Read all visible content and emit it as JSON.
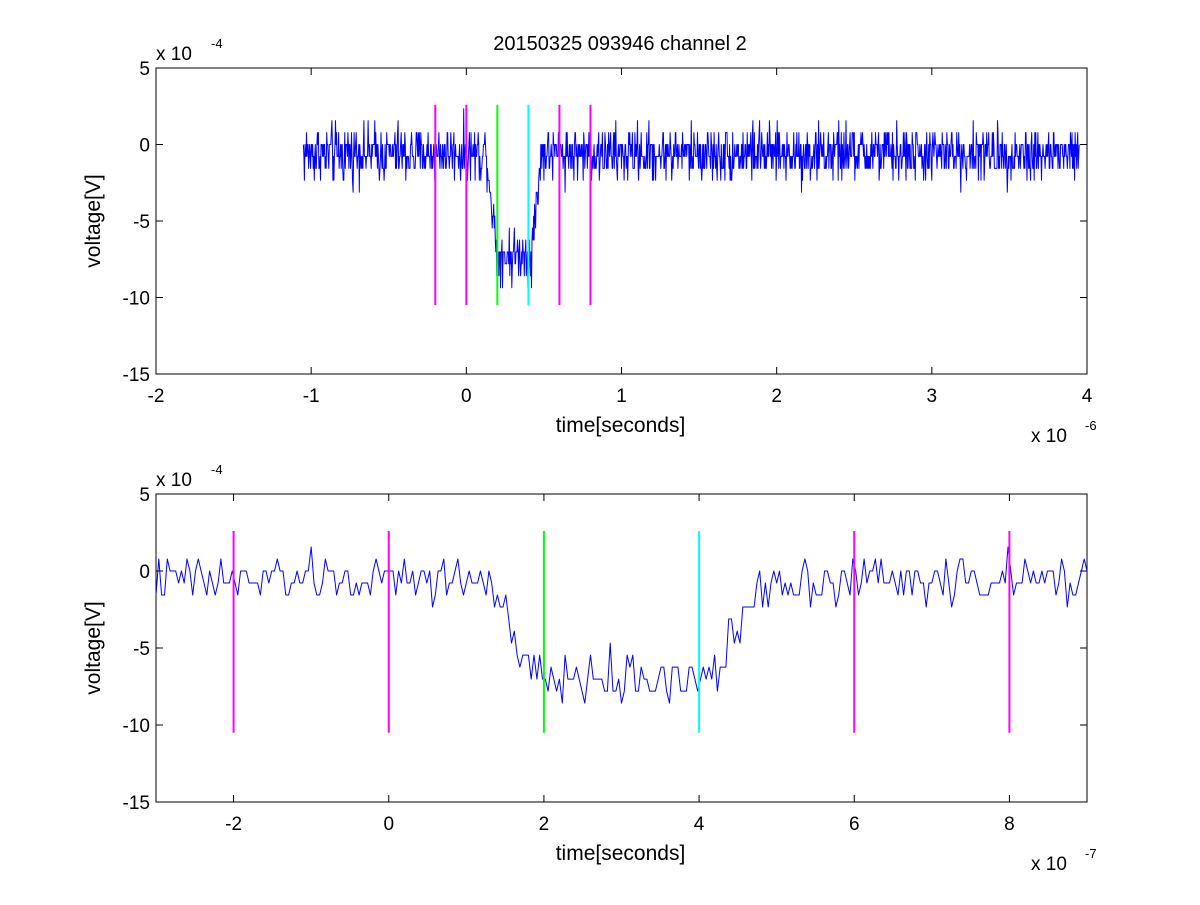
{
  "figure": {
    "title": "20150325 093946 channel 2"
  },
  "colors": {
    "signal": "#0000ff",
    "marker_magenta": "#ff00ff",
    "marker_green": "#00ff00",
    "marker_cyan": "#00ffff",
    "axes": "#000000"
  },
  "chart_data": [
    {
      "type": "line",
      "title": "20150325 093946 channel 2",
      "xlabel": "time[seconds]",
      "ylabel": "voltage[V]",
      "x_exponent_base": "x 10",
      "x_exponent_power": "-6",
      "y_exponent_base": "x 10",
      "y_exponent_power": "-4",
      "xlim": [
        -2,
        4
      ],
      "ylim": [
        -15,
        5
      ],
      "xticks": [
        -2,
        -1,
        0,
        1,
        2,
        3,
        4
      ],
      "xtick_labels": [
        "-2",
        "-1",
        "0",
        "1",
        "2",
        "3",
        "4"
      ],
      "yticks": [
        5,
        0,
        -5,
        -10,
        -15
      ],
      "ytick_labels": [
        "5",
        "0",
        "-5",
        "-10",
        "-15"
      ],
      "grid": false,
      "legend": "none",
      "series": [
        {
          "color": "#0000ff",
          "x_range": [
            -1.05,
            3.95
          ],
          "baseline": -0.6,
          "noise": 1.1,
          "dip": {
            "start": 0.13,
            "bottom_start": 0.2,
            "bottom_end": 0.42,
            "end": 0.48,
            "depth": -7.2
          }
        }
      ],
      "markers": [
        {
          "x": -0.2,
          "color": "#ff00ff",
          "y_range": [
            -10.5,
            2.6
          ]
        },
        {
          "x": 0.0,
          "color": "#ff00ff",
          "y_range": [
            -10.5,
            2.6
          ]
        },
        {
          "x": 0.2,
          "color": "#00ff00",
          "y_range": [
            -10.5,
            2.6
          ]
        },
        {
          "x": 0.4,
          "color": "#00ffff",
          "y_range": [
            -10.5,
            2.6
          ]
        },
        {
          "x": 0.6,
          "color": "#ff00ff",
          "y_range": [
            -10.5,
            2.6
          ]
        },
        {
          "x": 0.8,
          "color": "#ff00ff",
          "y_range": [
            -10.5,
            2.6
          ]
        }
      ]
    },
    {
      "type": "line",
      "xlabel": "time[seconds]",
      "ylabel": "voltage[V]",
      "x_exponent_base": "x 10",
      "x_exponent_power": "-7",
      "y_exponent_base": "x 10",
      "y_exponent_power": "-4",
      "xlim": [
        -3,
        9
      ],
      "ylim": [
        -15,
        5
      ],
      "xticks": [
        -2,
        0,
        2,
        4,
        6,
        8
      ],
      "xtick_labels": [
        "-2",
        "0",
        "2",
        "4",
        "6",
        "8"
      ],
      "yticks": [
        5,
        0,
        -5,
        -10,
        -15
      ],
      "ytick_labels": [
        "5",
        "0",
        "-5",
        "-10",
        "-15"
      ],
      "grid": false,
      "legend": "none",
      "series": [
        {
          "color": "#0000ff",
          "x_range": [
            -3,
            9
          ],
          "baseline": -0.6,
          "noise": 1.0,
          "dip": {
            "start": 1.3,
            "bottom_start": 1.8,
            "bottom_end": 4.2,
            "end": 4.8,
            "depth": -7.0
          }
        }
      ],
      "markers": [
        {
          "x": -2,
          "color": "#ff00ff",
          "y_range": [
            -10.5,
            2.6
          ]
        },
        {
          "x": 0,
          "color": "#ff00ff",
          "y_range": [
            -10.5,
            2.6
          ]
        },
        {
          "x": 2,
          "color": "#00ff00",
          "y_range": [
            -10.5,
            2.6
          ]
        },
        {
          "x": 4,
          "color": "#00ffff",
          "y_range": [
            -10.5,
            2.6
          ]
        },
        {
          "x": 6,
          "color": "#ff00ff",
          "y_range": [
            -10.5,
            2.6
          ]
        },
        {
          "x": 8,
          "color": "#ff00ff",
          "y_range": [
            -10.5,
            2.6
          ]
        }
      ]
    }
  ]
}
